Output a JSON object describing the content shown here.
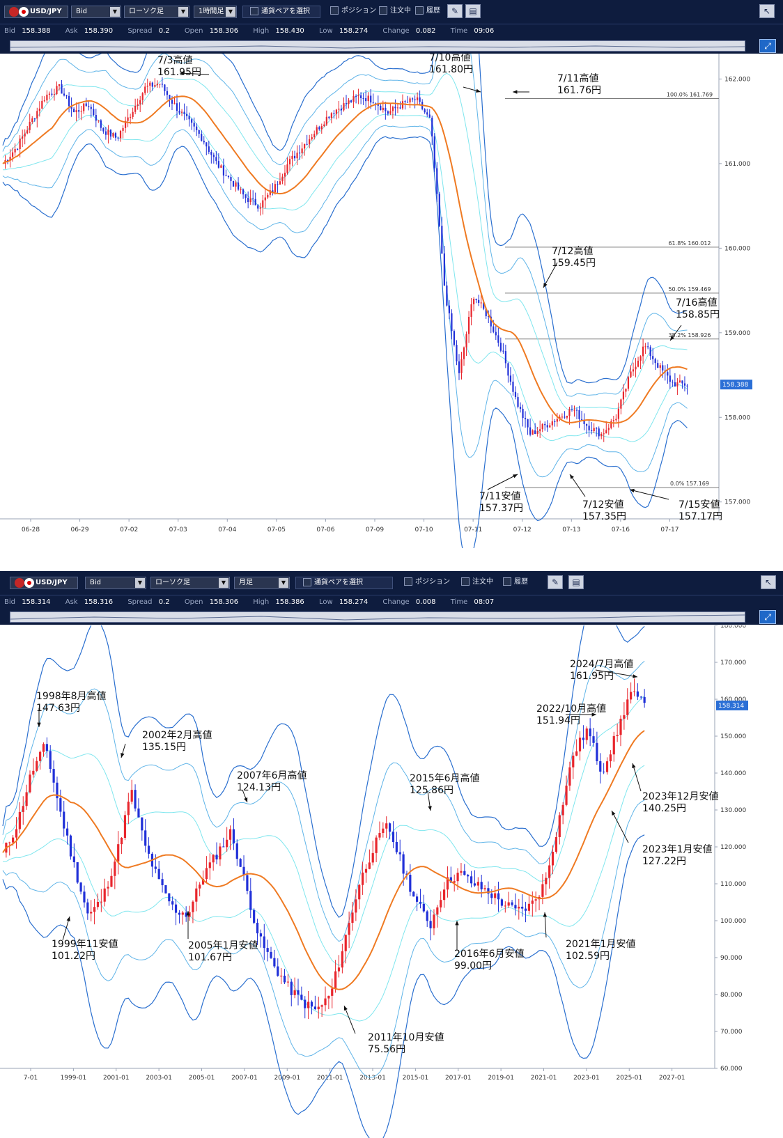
{
  "panels": [
    {
      "toolbar": {
        "symbol": "USD/JPY",
        "price_type": "Bid",
        "chart_type": "ローソク足",
        "period": "1時間足",
        "pair_select": "通貨ペアを選択",
        "position": "ポジション",
        "orders": "注文中",
        "history": "履歴"
      },
      "info": {
        "bid_label": "Bid",
        "bid": "158.388",
        "ask_label": "Ask",
        "ask": "158.390",
        "spread_label": "Spread",
        "spread": "0.2",
        "open_label": "Open",
        "open": "158.306",
        "high_label": "High",
        "high": "158.430",
        "low_label": "Low",
        "low": "158.274",
        "change_label": "Change",
        "change": "0.082",
        "time_label": "Time",
        "time": "09:06"
      }
    },
    {
      "toolbar": {
        "symbol": "USD/JPY",
        "price_type": "Bid",
        "chart_type": "ローソク足",
        "period": "月足",
        "pair_select": "通貨ペアを選択",
        "position": "ポジション",
        "orders": "注文中",
        "history": "履歴"
      },
      "info": {
        "bid_label": "Bid",
        "bid": "158.314",
        "ask_label": "Ask",
        "ask": "158.316",
        "spread_label": "Spread",
        "spread": "0.2",
        "open_label": "Open",
        "open": "158.306",
        "high_label": "High",
        "high": "158.386",
        "low_label": "Low",
        "low": "158.274",
        "change_label": "Change",
        "change": "0.008",
        "time_label": "Time",
        "time": "08:07"
      }
    }
  ],
  "colors": {
    "candle_up": "#e8262d",
    "candle_down": "#2030d8",
    "ma": "#ef7a22",
    "band1": "#7fe6ee",
    "band2": "#5fb4e8",
    "band3": "#2a6fcf",
    "price_box": "#2b6fd6"
  },
  "chart_data": [
    {
      "type": "candlestick",
      "timeframe": "1時間足",
      "x_ticks": [
        "06-28",
        "06-29",
        "07-02",
        "07-03",
        "07-04",
        "07-05",
        "07-06",
        "07-09",
        "07-10",
        "07-11",
        "07-12",
        "07-13",
        "07-16",
        "07-17"
      ],
      "y_ticks": [
        "157.000",
        "158.000",
        "159.000",
        "160.000",
        "161.000",
        "162.000"
      ],
      "ylim": [
        156.8,
        162.3
      ],
      "current_price": "158.388",
      "path": [
        161.0,
        161.2,
        161.5,
        161.8,
        161.9,
        161.6,
        161.7,
        161.4,
        161.3,
        161.6,
        161.9,
        161.95,
        161.7,
        161.5,
        161.3,
        161.0,
        160.8,
        160.6,
        160.5,
        160.7,
        161.0,
        161.2,
        161.4,
        161.6,
        161.7,
        161.8,
        161.75,
        161.6,
        161.7,
        161.76,
        161.5,
        159.5,
        158.5,
        159.45,
        159.2,
        158.8,
        158.2,
        157.8,
        157.9,
        158.0,
        158.1,
        157.9,
        157.8,
        158.0,
        158.5,
        158.85,
        158.6,
        158.4,
        158.388
      ],
      "fibonacci": [
        {
          "label": "100.0%",
          "value": "161.769"
        },
        {
          "label": "61.8%",
          "value": "160.012"
        },
        {
          "label": "50.0%",
          "value": "159.469"
        },
        {
          "label": "38.2%",
          "value": "158.926"
        },
        {
          "label": "0.0%",
          "value": "157.169"
        }
      ],
      "annotations": [
        {
          "line1": "7/3高値",
          "line2": "161.95円"
        },
        {
          "line1": "7/10高値",
          "line2": "161.80円"
        },
        {
          "line1": "7/11高値",
          "line2": "161.76円"
        },
        {
          "line1": "7/12高値",
          "line2": "159.45円"
        },
        {
          "line1": "7/16高値",
          "line2": "158.85円"
        },
        {
          "line1": "7/11安値",
          "line2": "157.37円"
        },
        {
          "line1": "7/12安値",
          "line2": "157.35円"
        },
        {
          "line1": "7/15安値",
          "line2": "157.17円"
        }
      ]
    },
    {
      "type": "candlestick",
      "timeframe": "月足",
      "x_ticks": [
        "7-01",
        "1999-01",
        "2001-01",
        "2003-01",
        "2005-01",
        "2007-01",
        "2009-01",
        "2011-01",
        "2013-01",
        "2015-01",
        "2017-01",
        "2019-01",
        "2021-01",
        "2023-01",
        "2025-01",
        "2027-01"
      ],
      "y_ticks": [
        "60.000",
        "70.000",
        "80.000",
        "90.000",
        "100.000",
        "110.000",
        "120.000",
        "130.000",
        "140.000",
        "150.000",
        "160.000",
        "170.000",
        "180.000"
      ],
      "ylim": [
        60,
        180
      ],
      "current_price": "158.314",
      "path": [
        118,
        126,
        140,
        147.6,
        130,
        115,
        101.2,
        106,
        118,
        135.1,
        120,
        110,
        103,
        101.7,
        112,
        118,
        124.1,
        110,
        95,
        88,
        82,
        78,
        75.6,
        80,
        95,
        110,
        120,
        125.9,
        115,
        105,
        99,
        110,
        113,
        110,
        108,
        105,
        102.6,
        104,
        110,
        127.2,
        145,
        151.9,
        140.25,
        150,
        161.95,
        158.3
      ],
      "annotations": [
        {
          "line1": "1998年8月高値",
          "line2": "147.63円"
        },
        {
          "line1": "2002年2月高値",
          "line2": "135.15円"
        },
        {
          "line1": "2007年6月高値",
          "line2": "124.13円"
        },
        {
          "line1": "2015年6月高値",
          "line2": "125.86円"
        },
        {
          "line1": "2024/7月高値",
          "line2": "161.95円"
        },
        {
          "line1": "2022/10月高値",
          "line2": "151.94円"
        },
        {
          "line1": "2023年12月安値",
          "line2": "140.25円"
        },
        {
          "line1": "2023年1月安値",
          "line2": "127.22円"
        },
        {
          "line1": "1999年11安値",
          "line2": "101.22円"
        },
        {
          "line1": "2005年1月安値",
          "line2": "101.67円"
        },
        {
          "line1": "2011年10月安値",
          "line2": "75.56円"
        },
        {
          "line1": "2016年6月安値",
          "line2": "99.00円"
        },
        {
          "line1": "2021年1月安値",
          "line2": "102.59円"
        }
      ]
    }
  ]
}
